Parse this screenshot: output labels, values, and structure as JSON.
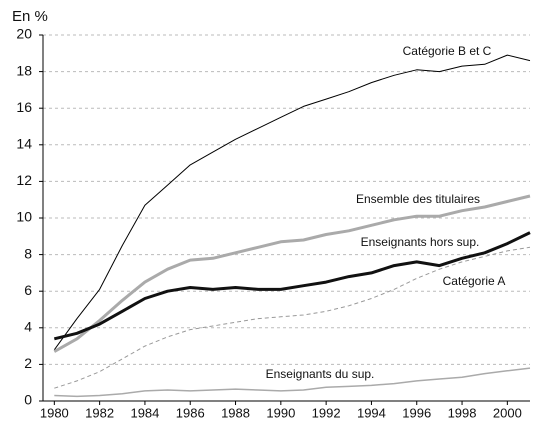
{
  "chart_data": {
    "type": "line",
    "y_label": "En %",
    "x": [
      1980,
      1981,
      1982,
      1983,
      1984,
      1985,
      1986,
      1987,
      1988,
      1989,
      1990,
      1991,
      1992,
      1993,
      1994,
      1995,
      1996,
      1997,
      1998,
      1999,
      2000,
      2001
    ],
    "xlim": [
      1979.5,
      2001
    ],
    "xticks": [
      1980,
      1982,
      1984,
      1986,
      1988,
      1990,
      1992,
      1994,
      1996,
      1998,
      2000
    ],
    "ylim": [
      0,
      20
    ],
    "yticks": [
      0,
      2,
      4,
      6,
      8,
      10,
      12,
      14,
      16,
      18,
      20
    ],
    "grid": true,
    "series": [
      {
        "name": "Catégorie B et C",
        "color": "#000000",
        "line_width": 1,
        "dashed": false,
        "values": [
          2.8,
          4.5,
          6.1,
          8.5,
          10.7,
          11.8,
          12.9,
          13.6,
          14.3,
          14.9,
          15.5,
          16.1,
          16.5,
          16.9,
          17.4,
          17.8,
          18.1,
          18.0,
          18.3,
          18.4,
          18.9,
          18.6
        ]
      },
      {
        "name": "Ensemble des titulaires",
        "color": "#aaaaaa",
        "line_width": 3,
        "dashed": false,
        "values": [
          2.7,
          3.4,
          4.4,
          5.5,
          6.5,
          7.2,
          7.7,
          7.8,
          8.1,
          8.4,
          8.7,
          8.8,
          9.1,
          9.3,
          9.6,
          9.9,
          10.1,
          10.1,
          10.4,
          10.6,
          10.9,
          11.2
        ]
      },
      {
        "name": "Enseignants hors sup.",
        "color": "#111111",
        "line_width": 3,
        "dashed": false,
        "values": [
          3.4,
          3.7,
          4.2,
          4.9,
          5.6,
          6.0,
          6.2,
          6.1,
          6.2,
          6.1,
          6.1,
          6.3,
          6.5,
          6.8,
          7.0,
          7.4,
          7.6,
          7.4,
          7.8,
          8.1,
          8.6,
          9.2
        ]
      },
      {
        "name": "Catégorie A",
        "color": "#999999",
        "line_width": 1,
        "dashed": true,
        "values": [
          0.7,
          1.1,
          1.6,
          2.3,
          3.0,
          3.5,
          3.9,
          4.1,
          4.3,
          4.5,
          4.6,
          4.7,
          4.9,
          5.2,
          5.6,
          6.1,
          6.7,
          7.2,
          7.6,
          7.9,
          8.2,
          8.4
        ]
      },
      {
        "name": "Enseignants du sup.",
        "color": "#aaaaaa",
        "line_width": 1.5,
        "dashed": false,
        "values": [
          0.3,
          0.25,
          0.3,
          0.4,
          0.55,
          0.6,
          0.55,
          0.6,
          0.65,
          0.6,
          0.55,
          0.6,
          0.75,
          0.8,
          0.85,
          0.95,
          1.1,
          1.2,
          1.3,
          1.5,
          1.65,
          1.8
        ]
      }
    ]
  }
}
